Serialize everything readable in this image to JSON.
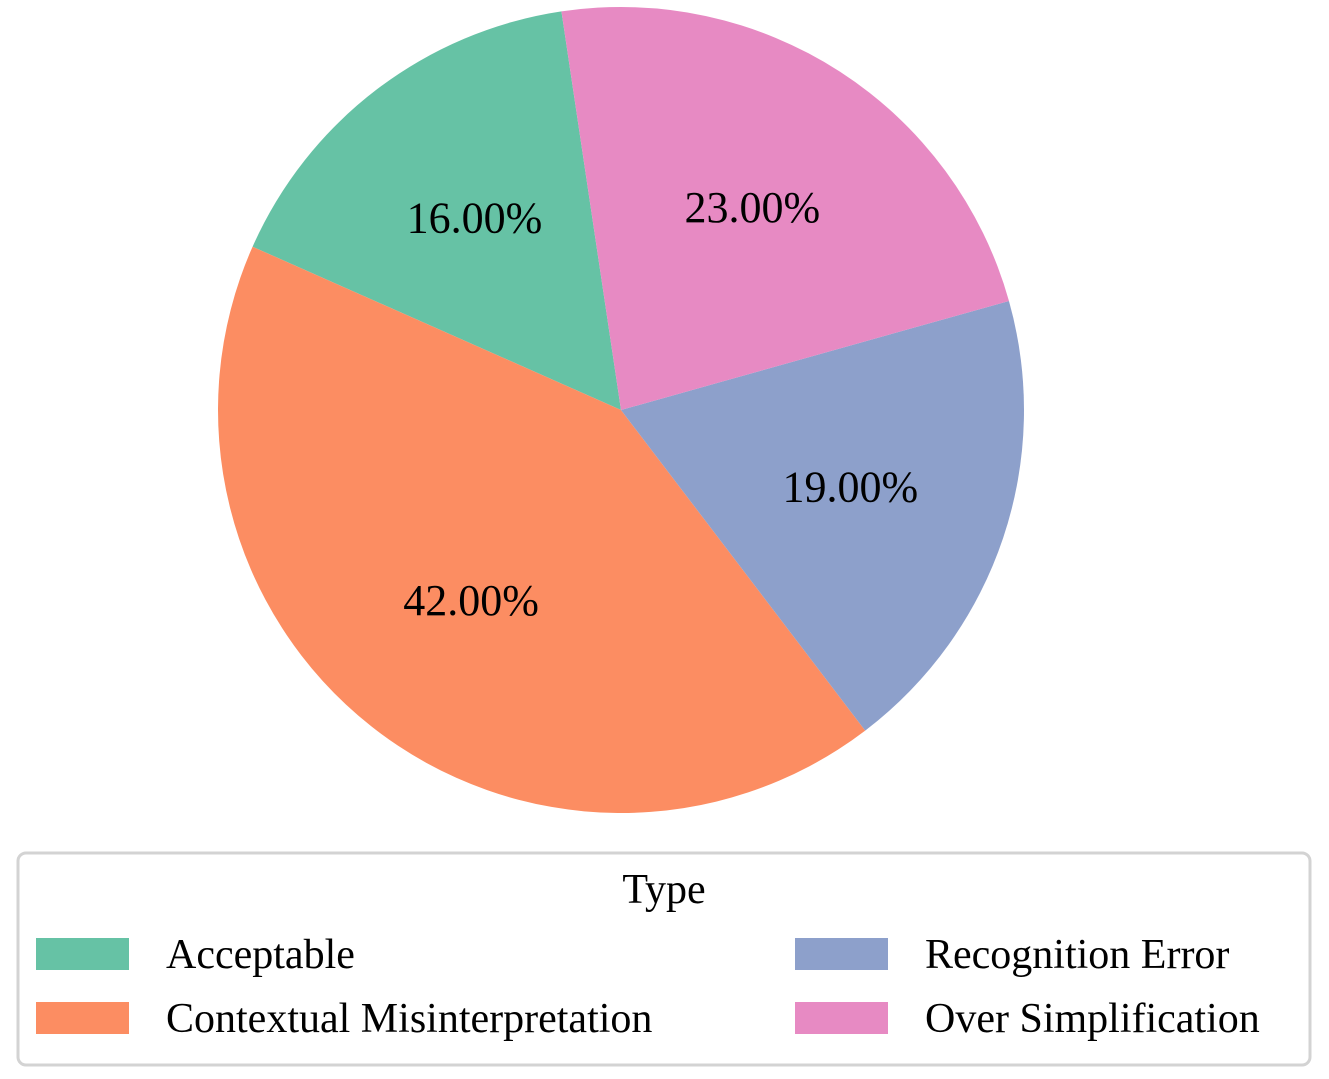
{
  "chart_data": {
    "type": "pie",
    "title": "",
    "slices": [
      {
        "label": "Acceptable",
        "value": 16.0,
        "value_label": "16.00%",
        "color": "#66c2a5"
      },
      {
        "label": "Contextual Misinterpretation",
        "value": 42.0,
        "value_label": "42.00%",
        "color": "#fc8d62"
      },
      {
        "label": "Recognition Error",
        "value": 19.0,
        "value_label": "19.00%",
        "color": "#8da0cb"
      },
      {
        "label": "Over Simplification",
        "value": 23.0,
        "value_label": "23.00%",
        "color": "#e78ac3"
      }
    ],
    "legend": {
      "title": "Type",
      "placement": "bottom",
      "columns": 2
    }
  }
}
